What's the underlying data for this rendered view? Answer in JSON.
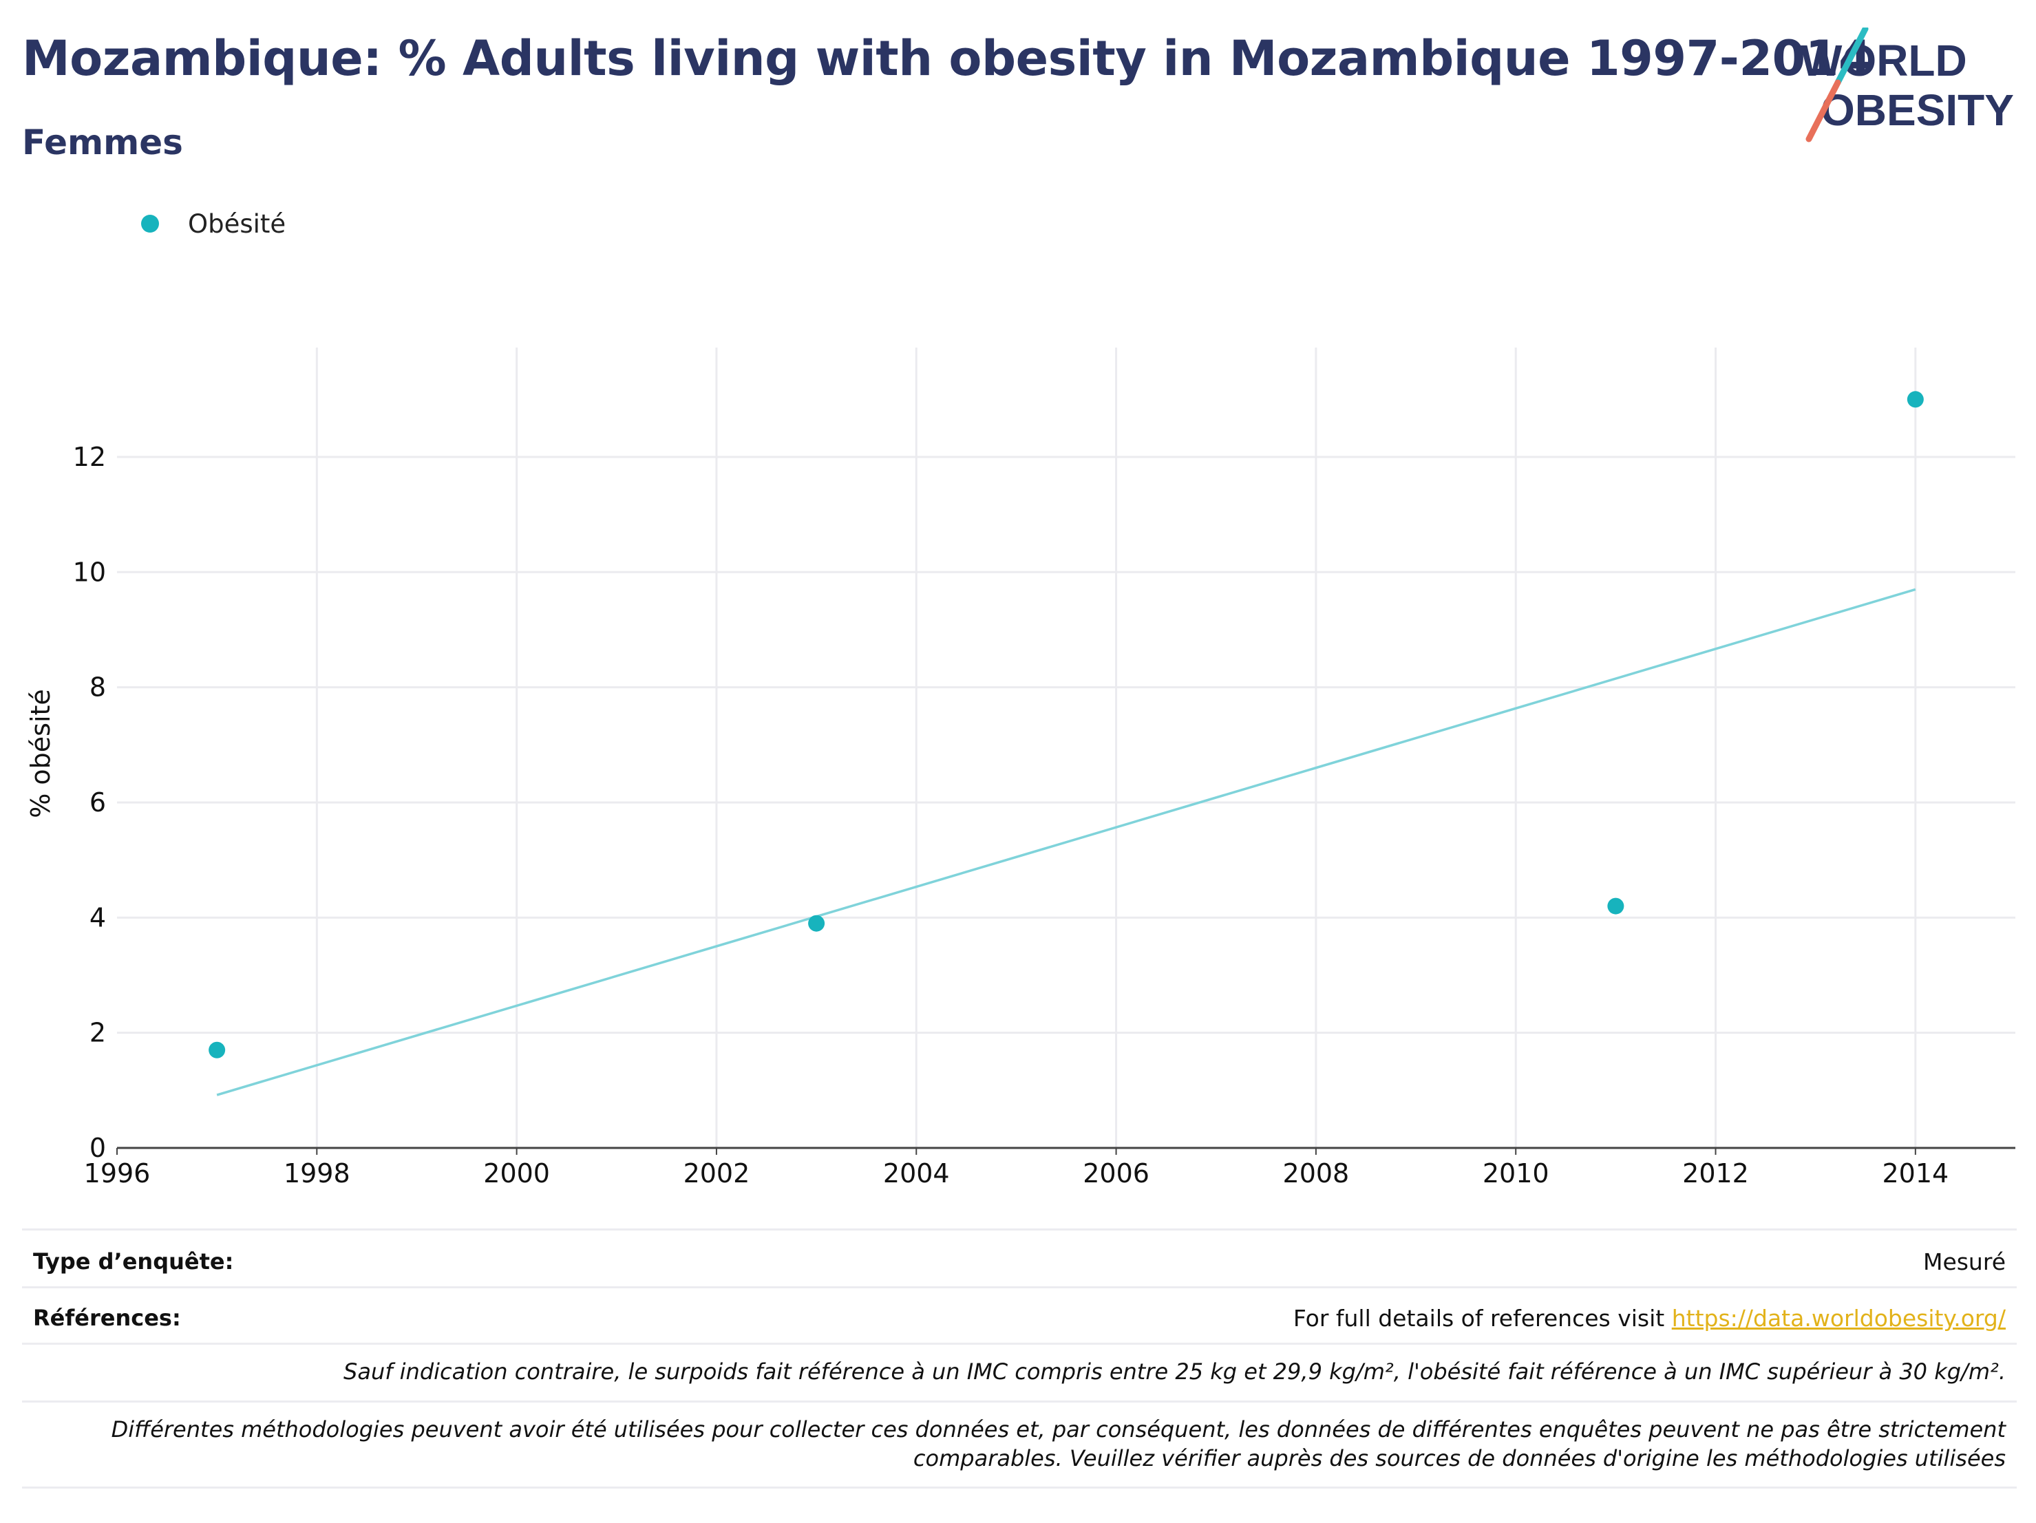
{
  "header": {
    "title": "Mozambique: % Adults living with obesity in Mozambique 1997-2014",
    "subtitle": "Femmes"
  },
  "logo": {
    "line1": "WORLD",
    "line2": "OBESITY",
    "colors": {
      "text": "#2b3563",
      "slash_top": "#2bbcc3",
      "slash_bottom": "#e8705a"
    }
  },
  "colors": {
    "points": "#17b3bd",
    "trend": "#7fd3da",
    "grid": "#ebebef",
    "axis": "#444444"
  },
  "chart_data": {
    "type": "scatter",
    "series": [
      {
        "name": "Obésité",
        "x": [
          1997,
          2003,
          2011,
          2014
        ],
        "y": [
          1.7,
          3.9,
          4.2,
          13.0
        ]
      }
    ],
    "trendline": {
      "x": [
        1997,
        2014
      ],
      "y": [
        0.92,
        9.7
      ]
    },
    "xlabel": "",
    "ylabel": "% obésité",
    "xlim": [
      1996,
      2015
    ],
    "ylim": [
      0,
      13.9
    ],
    "xticks": [
      1996,
      1998,
      2000,
      2002,
      2004,
      2006,
      2008,
      2010,
      2012,
      2014
    ],
    "yticks": [
      0,
      2,
      4,
      6,
      8,
      10,
      12
    ],
    "grid": true,
    "legend_position": "top-left"
  },
  "footer": {
    "survey_type_label": "Type d’enquête:",
    "survey_type_value": "Mesuré",
    "references_label": "Références:",
    "references_text": "For full details of references visit ",
    "references_link": "https://data.worldobesity.org/",
    "note1": "Sauf indication contraire, le surpoids fait référence à un IMC compris entre 25 kg et 29,9 kg/m², l'obésité fait référence à un IMC supérieur à 30 kg/m².",
    "note2_line1": "Différentes méthodologies peuvent avoir été utilisées pour collecter ces données et, par conséquent, les données de différentes enquêtes peuvent ne pas être strictement",
    "note2_line2": "comparables. Veuillez vérifier auprès des sources de données d'origine les méthodologies utilisées"
  }
}
